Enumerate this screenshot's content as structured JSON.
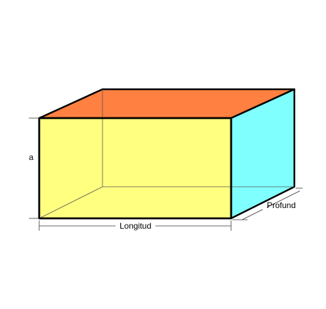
{
  "diagram": {
    "labels": {
      "height": "a",
      "length": "Longitud",
      "depth": "Profund"
    },
    "colors": {
      "front_face": "#ffff80",
      "top_face": "#ff8040",
      "side_face": "#80ffff",
      "edge": "#000000",
      "hidden_edge": "#555555",
      "dimension_line": "#333333",
      "background": "#ffffff"
    }
  }
}
